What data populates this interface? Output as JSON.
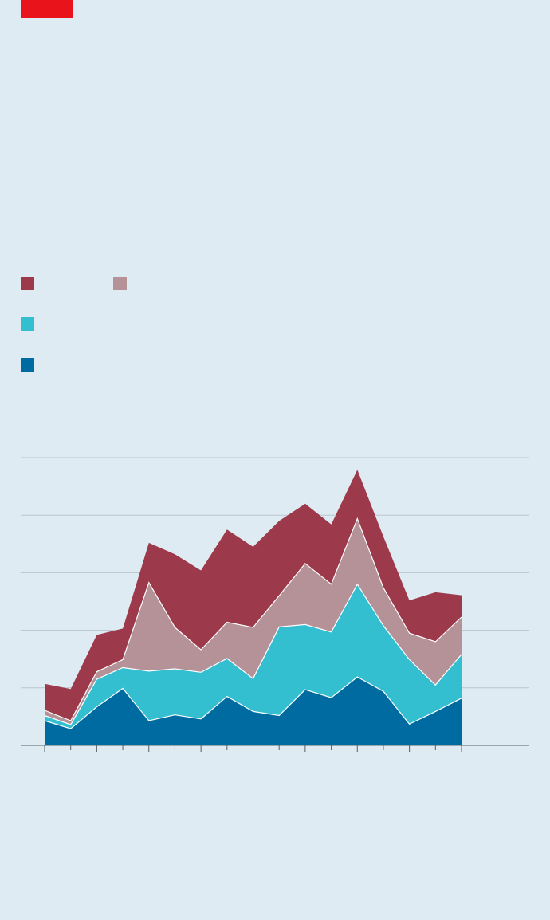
{
  "colors": {
    "background": "#deebf2",
    "brand": "#e8131b",
    "gridline": "#b9c6ce",
    "axis": "#555f66",
    "divider": "#ffffff"
  },
  "legend": [
    {
      "series_index": 3,
      "color": "#9c3a4b"
    },
    {
      "series_index": 2,
      "color": "#b59198"
    },
    {
      "series_index": 1,
      "color": "#33bfd0"
    },
    {
      "series_index": 0,
      "color": "#006ba1"
    }
  ],
  "chart_data": {
    "type": "area",
    "stacked": true,
    "x": [
      1,
      2,
      3,
      4,
      5,
      6,
      7,
      8,
      9,
      10,
      11,
      12,
      13,
      14,
      15,
      16,
      17
    ],
    "ylim": [
      0,
      5
    ],
    "gridlines_y": [
      1,
      2,
      3,
      4,
      5
    ],
    "grid": true,
    "series": [
      {
        "color": "#006ba1",
        "values": [
          0.43,
          0.29,
          0.67,
          0.99,
          0.43,
          0.53,
          0.46,
          0.85,
          0.59,
          0.52,
          0.97,
          0.83,
          1.19,
          0.94,
          0.37,
          0.59,
          0.82
        ]
      },
      {
        "color": "#33bfd0",
        "values": [
          0.09,
          0.07,
          0.48,
          0.36,
          0.86,
          0.8,
          0.81,
          0.66,
          0.57,
          1.54,
          1.13,
          1.14,
          1.61,
          1.14,
          1.12,
          0.46,
          0.76
        ]
      },
      {
        "color": "#b59198",
        "values": [
          0.09,
          0.07,
          0.13,
          0.14,
          1.54,
          0.72,
          0.39,
          0.63,
          0.89,
          0.54,
          1.06,
          0.83,
          1.14,
          0.66,
          0.46,
          0.75,
          0.65
        ]
      },
      {
        "color": "#9c3a4b",
        "values": [
          0.46,
          0.55,
          0.64,
          0.54,
          0.69,
          1.27,
          1.38,
          1.61,
          1.4,
          1.3,
          1.04,
          1.04,
          0.85,
          0.89,
          0.57,
          0.86,
          0.38
        ]
      }
    ]
  }
}
